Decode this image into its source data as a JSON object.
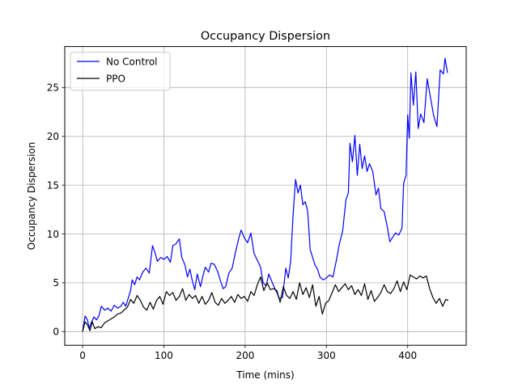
{
  "chart_data": {
    "type": "line",
    "title": "Occupancy Dispersion",
    "xlabel": "Time (mins)",
    "ylabel": "Occupancy Dispersion",
    "xlim": [
      -22,
      472
    ],
    "ylim": [
      -1.4,
      29.2
    ],
    "xticks": [
      0,
      100,
      200,
      300,
      400
    ],
    "yticks": [
      0,
      5,
      10,
      15,
      20,
      25
    ],
    "grid": true,
    "legend": "top-left",
    "series": [
      {
        "name": "No Control",
        "color": "#0000ff",
        "points": [
          [
            0,
            0
          ],
          [
            3,
            1.6
          ],
          [
            6,
            1.2
          ],
          [
            8,
            0.3
          ],
          [
            11,
            1.0
          ],
          [
            14,
            1.5
          ],
          [
            17,
            1.2
          ],
          [
            20,
            1.6
          ],
          [
            23,
            2.6
          ],
          [
            27,
            2.2
          ],
          [
            31,
            2.4
          ],
          [
            35,
            2.1
          ],
          [
            39,
            2.7
          ],
          [
            43,
            2.4
          ],
          [
            47,
            2.6
          ],
          [
            50,
            3.0
          ],
          [
            53,
            2.6
          ],
          [
            56,
            3.4
          ],
          [
            59,
            4.2
          ],
          [
            61,
            5.3
          ],
          [
            64,
            4.8
          ],
          [
            67,
            5.6
          ],
          [
            70,
            5.3
          ],
          [
            74,
            6.1
          ],
          [
            78,
            6.5
          ],
          [
            82,
            6.0
          ],
          [
            86,
            8.8
          ],
          [
            89,
            8.1
          ],
          [
            92,
            7.2
          ],
          [
            96,
            7.6
          ],
          [
            100,
            7.4
          ],
          [
            104,
            7.7
          ],
          [
            108,
            7.1
          ],
          [
            111,
            8.8
          ],
          [
            115,
            9.0
          ],
          [
            119,
            9.5
          ],
          [
            122,
            7.6
          ],
          [
            126,
            6.8
          ],
          [
            129,
            5.6
          ],
          [
            132,
            6.4
          ],
          [
            135,
            5.2
          ],
          [
            138,
            4.3
          ],
          [
            141,
            5.9
          ],
          [
            145,
            4.6
          ],
          [
            148,
            5.7
          ],
          [
            151,
            6.6
          ],
          [
            155,
            6.1
          ],
          [
            158,
            7.0
          ],
          [
            162,
            6.9
          ],
          [
            166,
            6.2
          ],
          [
            170,
            5.1
          ],
          [
            173,
            4.4
          ],
          [
            176,
            4.6
          ],
          [
            180,
            6.0
          ],
          [
            184,
            6.5
          ],
          [
            188,
            8.1
          ],
          [
            192,
            9.5
          ],
          [
            195,
            10.4
          ],
          [
            199,
            9.6
          ],
          [
            203,
            9.1
          ],
          [
            207,
            10.1
          ],
          [
            211,
            8.0
          ],
          [
            215,
            7.3
          ],
          [
            219,
            6.6
          ],
          [
            222,
            5.0
          ],
          [
            226,
            4.7
          ],
          [
            229,
            5.9
          ],
          [
            232,
            5.3
          ],
          [
            236,
            4.5
          ],
          [
            239,
            4.0
          ],
          [
            242,
            3.4
          ],
          [
            246,
            3.5
          ],
          [
            250,
            6.5
          ],
          [
            253,
            5.5
          ],
          [
            256,
            7.2
          ],
          [
            259,
            12.0
          ],
          [
            262,
            15.6
          ],
          [
            265,
            14.2
          ],
          [
            268,
            15.0
          ],
          [
            271,
            13.0
          ],
          [
            274,
            13.3
          ],
          [
            277,
            12.3
          ],
          [
            280,
            8.4
          ],
          [
            283,
            7.6
          ],
          [
            286,
            6.8
          ],
          [
            289,
            6.4
          ],
          [
            292,
            5.6
          ],
          [
            296,
            5.3
          ],
          [
            300,
            5.5
          ],
          [
            304,
            5.8
          ],
          [
            308,
            5.6
          ],
          [
            312,
            7.2
          ],
          [
            316,
            9.0
          ],
          [
            320,
            10.3
          ],
          [
            324,
            13.5
          ],
          [
            327,
            14.2
          ],
          [
            329,
            19.3
          ],
          [
            332,
            17.4
          ],
          [
            335,
            20.1
          ],
          [
            338,
            16.0
          ],
          [
            341,
            19.2
          ],
          [
            344,
            16.7
          ],
          [
            347,
            18.0
          ],
          [
            350,
            16.4
          ],
          [
            353,
            17.2
          ],
          [
            357,
            16.4
          ],
          [
            361,
            14.0
          ],
          [
            364,
            14.7
          ],
          [
            367,
            12.6
          ],
          [
            371,
            12.3
          ],
          [
            375,
            10.7
          ],
          [
            378,
            9.2
          ],
          [
            381,
            9.6
          ],
          [
            385,
            10.1
          ],
          [
            389,
            9.9
          ],
          [
            393,
            10.6
          ],
          [
            395,
            15.2
          ],
          [
            398,
            16.0
          ],
          [
            400,
            22.2
          ],
          [
            402,
            19.8
          ],
          [
            404,
            26.5
          ],
          [
            407,
            23.2
          ],
          [
            410,
            26.6
          ],
          [
            413,
            20.8
          ],
          [
            416,
            22.3
          ],
          [
            420,
            21.4
          ],
          [
            424,
            25.9
          ],
          [
            428,
            24.0
          ],
          [
            432,
            22.1
          ],
          [
            436,
            21.0
          ],
          [
            440,
            26.8
          ],
          [
            444,
            26.4
          ],
          [
            446,
            28.0
          ],
          [
            449,
            26.5
          ]
        ]
      },
      {
        "name": "PPO",
        "color": "#000000",
        "points": [
          [
            0,
            0
          ],
          [
            3,
            1.0
          ],
          [
            6,
            0.7
          ],
          [
            9,
            0.1
          ],
          [
            12,
            1.0
          ],
          [
            15,
            0.3
          ],
          [
            19,
            0.5
          ],
          [
            23,
            0.4
          ],
          [
            27,
            0.9
          ],
          [
            31,
            1.1
          ],
          [
            35,
            1.3
          ],
          [
            39,
            1.5
          ],
          [
            43,
            1.8
          ],
          [
            47,
            1.9
          ],
          [
            51,
            2.2
          ],
          [
            55,
            2.5
          ],
          [
            59,
            3.3
          ],
          [
            63,
            2.9
          ],
          [
            67,
            3.7
          ],
          [
            71,
            3.2
          ],
          [
            75,
            2.5
          ],
          [
            79,
            2.2
          ],
          [
            83,
            3.0
          ],
          [
            87,
            2.3
          ],
          [
            91,
            3.2
          ],
          [
            95,
            3.6
          ],
          [
            99,
            2.8
          ],
          [
            103,
            4.1
          ],
          [
            107,
            3.7
          ],
          [
            111,
            4.0
          ],
          [
            115,
            3.2
          ],
          [
            119,
            3.6
          ],
          [
            123,
            4.4
          ],
          [
            127,
            3.2
          ],
          [
            131,
            3.8
          ],
          [
            135,
            3.4
          ],
          [
            139,
            3.7
          ],
          [
            143,
            2.9
          ],
          [
            147,
            3.6
          ],
          [
            151,
            2.8
          ],
          [
            155,
            3.2
          ],
          [
            159,
            4.0
          ],
          [
            163,
            3.0
          ],
          [
            167,
            2.7
          ],
          [
            171,
            3.4
          ],
          [
            175,
            2.9
          ],
          [
            179,
            3.2
          ],
          [
            183,
            3.6
          ],
          [
            187,
            3.0
          ],
          [
            191,
            3.8
          ],
          [
            195,
            3.4
          ],
          [
            199,
            3.6
          ],
          [
            203,
            3.1
          ],
          [
            207,
            4.1
          ],
          [
            211,
            3.7
          ],
          [
            215,
            4.8
          ],
          [
            219,
            5.6
          ],
          [
            223,
            4.2
          ],
          [
            227,
            5.0
          ],
          [
            231,
            4.3
          ],
          [
            235,
            4.4
          ],
          [
            239,
            4.2
          ],
          [
            243,
            3.0
          ],
          [
            247,
            4.6
          ],
          [
            251,
            3.7
          ],
          [
            255,
            3.4
          ],
          [
            259,
            4.1
          ],
          [
            263,
            3.3
          ],
          [
            267,
            5.0
          ],
          [
            271,
            3.8
          ],
          [
            275,
            4.5
          ],
          [
            279,
            3.5
          ],
          [
            283,
            4.8
          ],
          [
            287,
            2.6
          ],
          [
            291,
            3.6
          ],
          [
            295,
            1.8
          ],
          [
            299,
            2.9
          ],
          [
            303,
            3.2
          ],
          [
            307,
            4.0
          ],
          [
            311,
            4.8
          ],
          [
            315,
            4.1
          ],
          [
            319,
            4.5
          ],
          [
            323,
            4.9
          ],
          [
            327,
            4.3
          ],
          [
            331,
            4.7
          ],
          [
            335,
            3.8
          ],
          [
            339,
            4.3
          ],
          [
            343,
            3.7
          ],
          [
            347,
            4.9
          ],
          [
            351,
            3.3
          ],
          [
            355,
            4.2
          ],
          [
            359,
            3.1
          ],
          [
            363,
            3.5
          ],
          [
            367,
            4.0
          ],
          [
            371,
            4.8
          ],
          [
            375,
            4.1
          ],
          [
            379,
            3.9
          ],
          [
            383,
            4.4
          ],
          [
            387,
            5.2
          ],
          [
            391,
            4.1
          ],
          [
            395,
            5.1
          ],
          [
            399,
            4.3
          ],
          [
            403,
            5.8
          ],
          [
            407,
            5.6
          ],
          [
            411,
            5.4
          ],
          [
            415,
            5.7
          ],
          [
            419,
            5.5
          ],
          [
            423,
            5.7
          ],
          [
            427,
            4.4
          ],
          [
            431,
            3.5
          ],
          [
            435,
            2.9
          ],
          [
            439,
            3.4
          ],
          [
            443,
            2.6
          ],
          [
            447,
            3.3
          ],
          [
            450,
            3.2
          ]
        ]
      }
    ]
  }
}
